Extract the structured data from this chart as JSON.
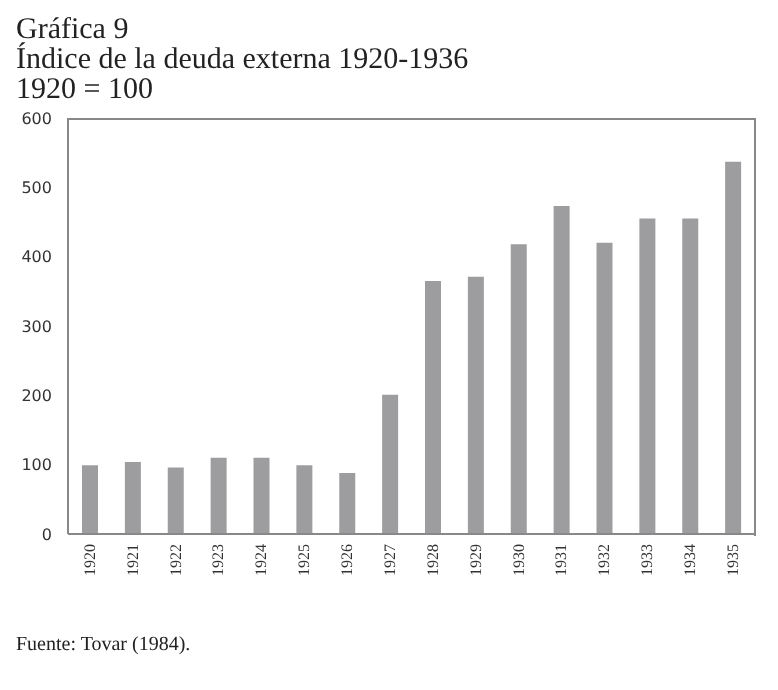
{
  "chart_data": {
    "type": "bar",
    "title": "Gráfica 9",
    "subtitle": "Índice de la deuda externa 1920-1936",
    "annotations": [
      "1920 = 100",
      "Fuente: Tovar (1984)."
    ],
    "categories": [
      "1920",
      "1921",
      "1922",
      "1923",
      "1924",
      "1925",
      "1926",
      "1927",
      "1928",
      "1929",
      "1930",
      "1931",
      "1932",
      "1933",
      "1934",
      "1935"
    ],
    "values": [
      99,
      104,
      96,
      110,
      110,
      99,
      88,
      201,
      365,
      371,
      418,
      473,
      420,
      455,
      455,
      537
    ],
    "color": "#9d9d9f",
    "ylim": [
      0,
      600
    ],
    "yticks": [
      0,
      100,
      200,
      300,
      400,
      500,
      600
    ],
    "grid": false,
    "legend": false
  }
}
